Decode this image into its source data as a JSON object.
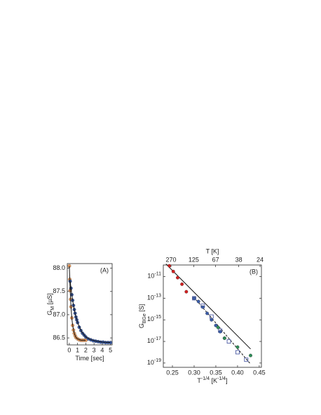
{
  "chart_data": [
    {
      "type": "scatter",
      "panel_label": "(A)",
      "xlabel": "Time [sec]",
      "ylabel": "G",
      "ylabel_sub": "M",
      "ylabel_unit": " [µS]",
      "xlim": [
        -0.25,
        5.2
      ],
      "ylim": [
        86.35,
        88.1
      ],
      "xticks": [
        0,
        1,
        2,
        3,
        4,
        5
      ],
      "yticks": [
        {
          "value": 86.5,
          "label": "86.5"
        },
        {
          "value": 87,
          "label": "87.0"
        },
        {
          "value": 87.5,
          "label": "87.5"
        },
        {
          "value": 88,
          "label": "88.0"
        }
      ],
      "series": [
        {
          "color": "#f2a060",
          "marker": "circle",
          "x": [
            0,
            0.05,
            0.1,
            0.15,
            0.2,
            0.3,
            0.4,
            0.5,
            0.6,
            0.7,
            0.8,
            1.0,
            1.2,
            1.4,
            1.6,
            1.8,
            2.0
          ],
          "values": [
            88.05,
            87.76,
            87.52,
            87.33,
            87.17,
            86.93,
            86.77,
            86.67,
            86.6,
            86.55,
            86.51,
            86.48,
            86.46,
            86.45,
            86.45,
            86.45,
            86.45
          ]
        },
        {
          "color": "#3a5ca8",
          "marker": "circle",
          "x": [
            0.1,
            0.2,
            0.3,
            0.4,
            0.5,
            0.6,
            0.7,
            0.8,
            0.9,
            1.0,
            1.2,
            1.4,
            1.6,
            1.8,
            2.0,
            2.3,
            2.6,
            2.9,
            3.2,
            3.5,
            3.8,
            4.1,
            4.4,
            4.7,
            5.0
          ],
          "values": [
            87.72,
            87.57,
            87.43,
            87.31,
            87.2,
            87.11,
            87.03,
            86.95,
            86.89,
            86.83,
            86.73,
            86.66,
            86.6,
            86.56,
            86.52,
            86.48,
            86.46,
            86.44,
            86.43,
            86.42,
            86.41,
            86.41,
            86.4,
            86.4,
            86.4
          ]
        },
        {
          "color": "#111111",
          "line": "solid",
          "x": [
            0,
            0.1,
            0.2,
            0.3,
            0.4,
            0.6,
            0.8,
            1.0,
            1.4,
            2.0
          ],
          "values": [
            88.05,
            87.52,
            87.17,
            86.93,
            86.77,
            86.6,
            86.51,
            86.48,
            86.45,
            86.45
          ]
        },
        {
          "color": "#111111",
          "line": "solid",
          "x": [
            0.1,
            0.3,
            0.5,
            0.75,
            1,
            1.5,
            2,
            2.5,
            3,
            4,
            5
          ],
          "values": [
            87.72,
            87.43,
            87.2,
            86.99,
            86.83,
            86.63,
            86.52,
            86.47,
            86.44,
            86.41,
            86.4
          ]
        }
      ]
    },
    {
      "type": "scatter",
      "panel_label": "(B)",
      "ylog": true,
      "xlabel": "T",
      "xlabel_sup": "-1/4",
      "xlabel_unit": " [K",
      "xlabel_unit_sup": "-1/4",
      "xlabel_end": "]",
      "ylabel": "G",
      "ylabel_sub": "BGe",
      "ylabel_unit": " [S]",
      "x2label": "T [K]",
      "xlim": [
        0.229,
        0.455
      ],
      "ylim": [
        4e-20,
        1.2e-10
      ],
      "xticks": [
        0.25,
        {
          "value": 0.3,
          "label": "0.30"
        },
        0.35,
        {
          "value": 0.4,
          "label": "0.40"
        },
        0.45
      ],
      "x2ticks": [
        270,
        125,
        67,
        38,
        24
      ],
      "yticks": [
        {
          "value": 1e-19,
          "label": "10-19"
        },
        {
          "value": 1e-17,
          "label": "10-17"
        },
        {
          "value": 1e-15,
          "label": "10-15"
        },
        {
          "value": 1e-13,
          "label": "10-13"
        },
        {
          "value": 1e-11,
          "label": "10-11"
        }
      ],
      "series": [
        {
          "color": "#111111",
          "line": "solid",
          "x": [
            0.235,
            0.43
          ],
          "values": [
            1.5e-10,
            2e-18
          ]
        },
        {
          "color": "#111111",
          "line": "dashed",
          "x": [
            0.3,
            0.43
          ],
          "values": [
            1.2e-13,
            8e-20
          ]
        },
        {
          "color": "#3a4a9a",
          "marker": "square",
          "x": [
            0.3,
            0.32,
            0.34,
            0.36,
            0.38,
            0.4,
            0.42
          ],
          "values": [
            1e-13,
            2e-14,
            2e-15,
            1e-16,
            1e-17,
            1e-18,
            2e-19
          ]
        },
        {
          "color": "#d02020",
          "marker": "circle",
          "x": [
            0.243,
            0.252,
            0.262,
            0.272,
            0.282
          ],
          "values": [
            1e-10,
            3e-11,
            8e-12,
            2e-12,
            4e-13
          ]
        },
        {
          "color": "#3a5ca8",
          "marker": "circle",
          "x": [
            0.3,
            0.31,
            0.32,
            0.33,
            0.34,
            0.35,
            0.36,
            0.37
          ],
          "values": [
            1e-13,
            5e-14,
            1.5e-14,
            4e-15,
            1e-15,
            3e-16,
            8e-17,
            2e-17
          ]
        },
        {
          "color": "#2e8b57",
          "marker": "circle",
          "x": [
            0.355,
            0.37,
            0.4,
            0.43
          ],
          "values": [
            2e-16,
            2e-17,
            3e-18,
            5e-19
          ]
        }
      ]
    }
  ]
}
